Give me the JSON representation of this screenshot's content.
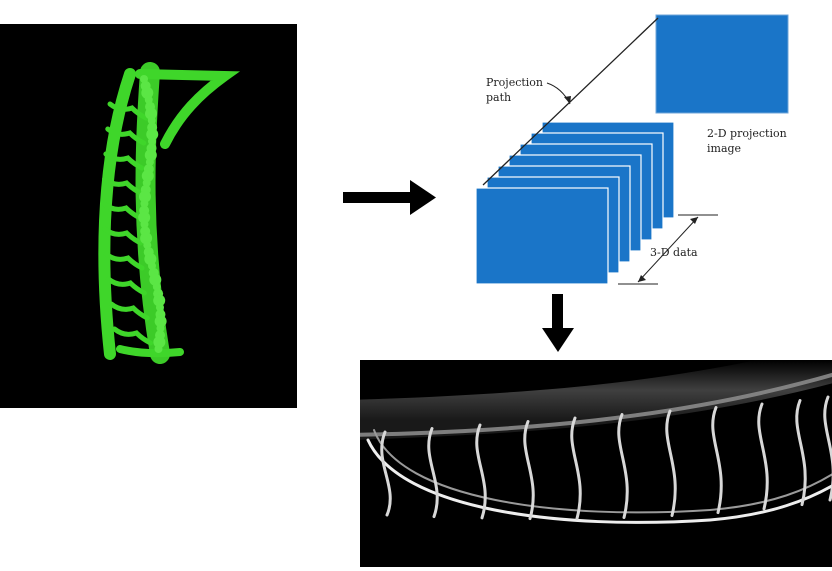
{
  "diagram": {
    "projection_path_line1": "Projection",
    "projection_path_line2": "path",
    "projection_image_line1": "2-D projection",
    "projection_image_line2": "image",
    "data_label": "3-D data"
  },
  "colors": {
    "vessel_green": "#3fd62a",
    "slab_blue": "#1a75c8",
    "background_black": "#000000",
    "arrow_black": "#000000"
  }
}
